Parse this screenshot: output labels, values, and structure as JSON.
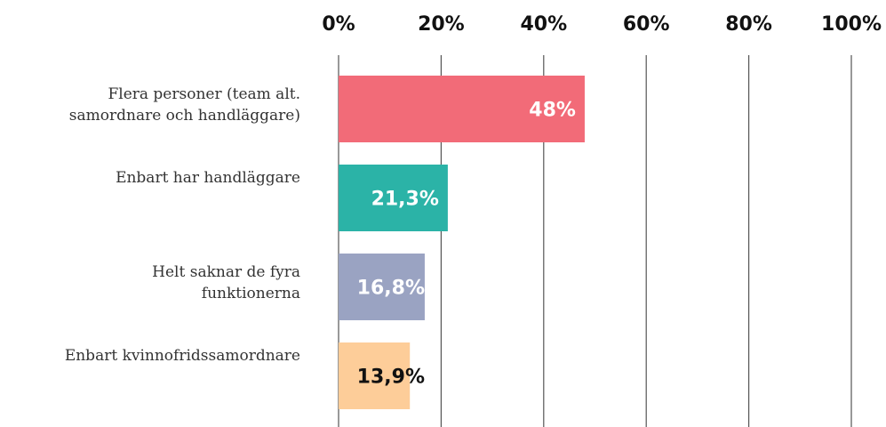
{
  "chart_data": {
    "type": "bar",
    "orientation": "horizontal",
    "categories": [
      "Flera personer (team alt.\nsamordnare och handläggare)",
      "Enbart har handläggare",
      "Helt saknar de fyra\nfunktionerna",
      "Enbart kvinnofridssamordnare"
    ],
    "values": [
      48,
      21.3,
      16.8,
      13.9
    ],
    "value_labels": [
      "48%",
      "21,3%",
      "16,8%",
      "13,9%"
    ],
    "colors": [
      "#f26b78",
      "#2bb3a7",
      "#9aa3c2",
      "#fdcd99"
    ],
    "label_colors": [
      "#ffffff",
      "#ffffff",
      "#ffffff",
      "#111111"
    ],
    "xlim": [
      0,
      100
    ],
    "xticks": [
      {
        "value": 0,
        "label": "0%"
      },
      {
        "value": 20,
        "label": "20%"
      },
      {
        "value": 40,
        "label": "40%"
      },
      {
        "value": 60,
        "label": "60%"
      },
      {
        "value": 80,
        "label": "80%"
      },
      {
        "value": 100,
        "label": "100%"
      }
    ],
    "grid": true
  }
}
